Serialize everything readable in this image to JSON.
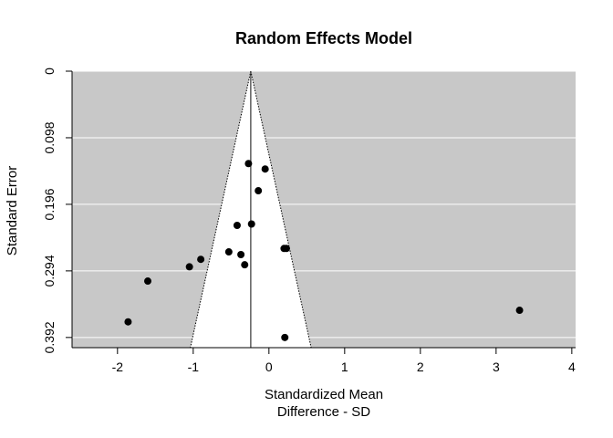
{
  "chart_data": {
    "type": "scatter",
    "title": "Random Effects Model",
    "xlabel": [
      "Standardized Mean",
      "Difference - SD"
    ],
    "ylabel": "Standard Error",
    "xlim": [
      -2.6,
      4.05
    ],
    "ylim": [
      0,
      0.407
    ],
    "y_reversed": true,
    "x_ticks": [
      -2,
      -1,
      0,
      1,
      2,
      3,
      4
    ],
    "x_tick_labels": [
      "-2",
      "-1",
      "0",
      "1",
      "2",
      "3",
      "4"
    ],
    "y_ticks": [
      0,
      0.098,
      0.196,
      0.294,
      0.392
    ],
    "y_tick_labels": [
      "0",
      "0.098",
      "0.196",
      "0.294",
      "0.392"
    ],
    "pooled_estimate": -0.24,
    "funnel_z": 1.96,
    "grid": true,
    "colors": {
      "panel_background": "#c8c8c8",
      "funnel_fill": "#ffffff",
      "gridline": "#ffffff",
      "point": "#000000"
    },
    "points": [
      {
        "x": -0.27,
        "y": 0.136
      },
      {
        "x": -0.05,
        "y": 0.144
      },
      {
        "x": -0.14,
        "y": 0.176
      },
      {
        "x": -0.42,
        "y": 0.227
      },
      {
        "x": -0.23,
        "y": 0.225
      },
      {
        "x": 0.2,
        "y": 0.261
      },
      {
        "x": 0.23,
        "y": 0.261
      },
      {
        "x": -0.53,
        "y": 0.266
      },
      {
        "x": -0.37,
        "y": 0.27
      },
      {
        "x": -0.32,
        "y": 0.285
      },
      {
        "x": -0.9,
        "y": 0.277
      },
      {
        "x": -1.05,
        "y": 0.288
      },
      {
        "x": -1.6,
        "y": 0.309
      },
      {
        "x": -1.86,
        "y": 0.369
      },
      {
        "x": 0.21,
        "y": 0.392
      },
      {
        "x": 3.31,
        "y": 0.352
      }
    ]
  }
}
